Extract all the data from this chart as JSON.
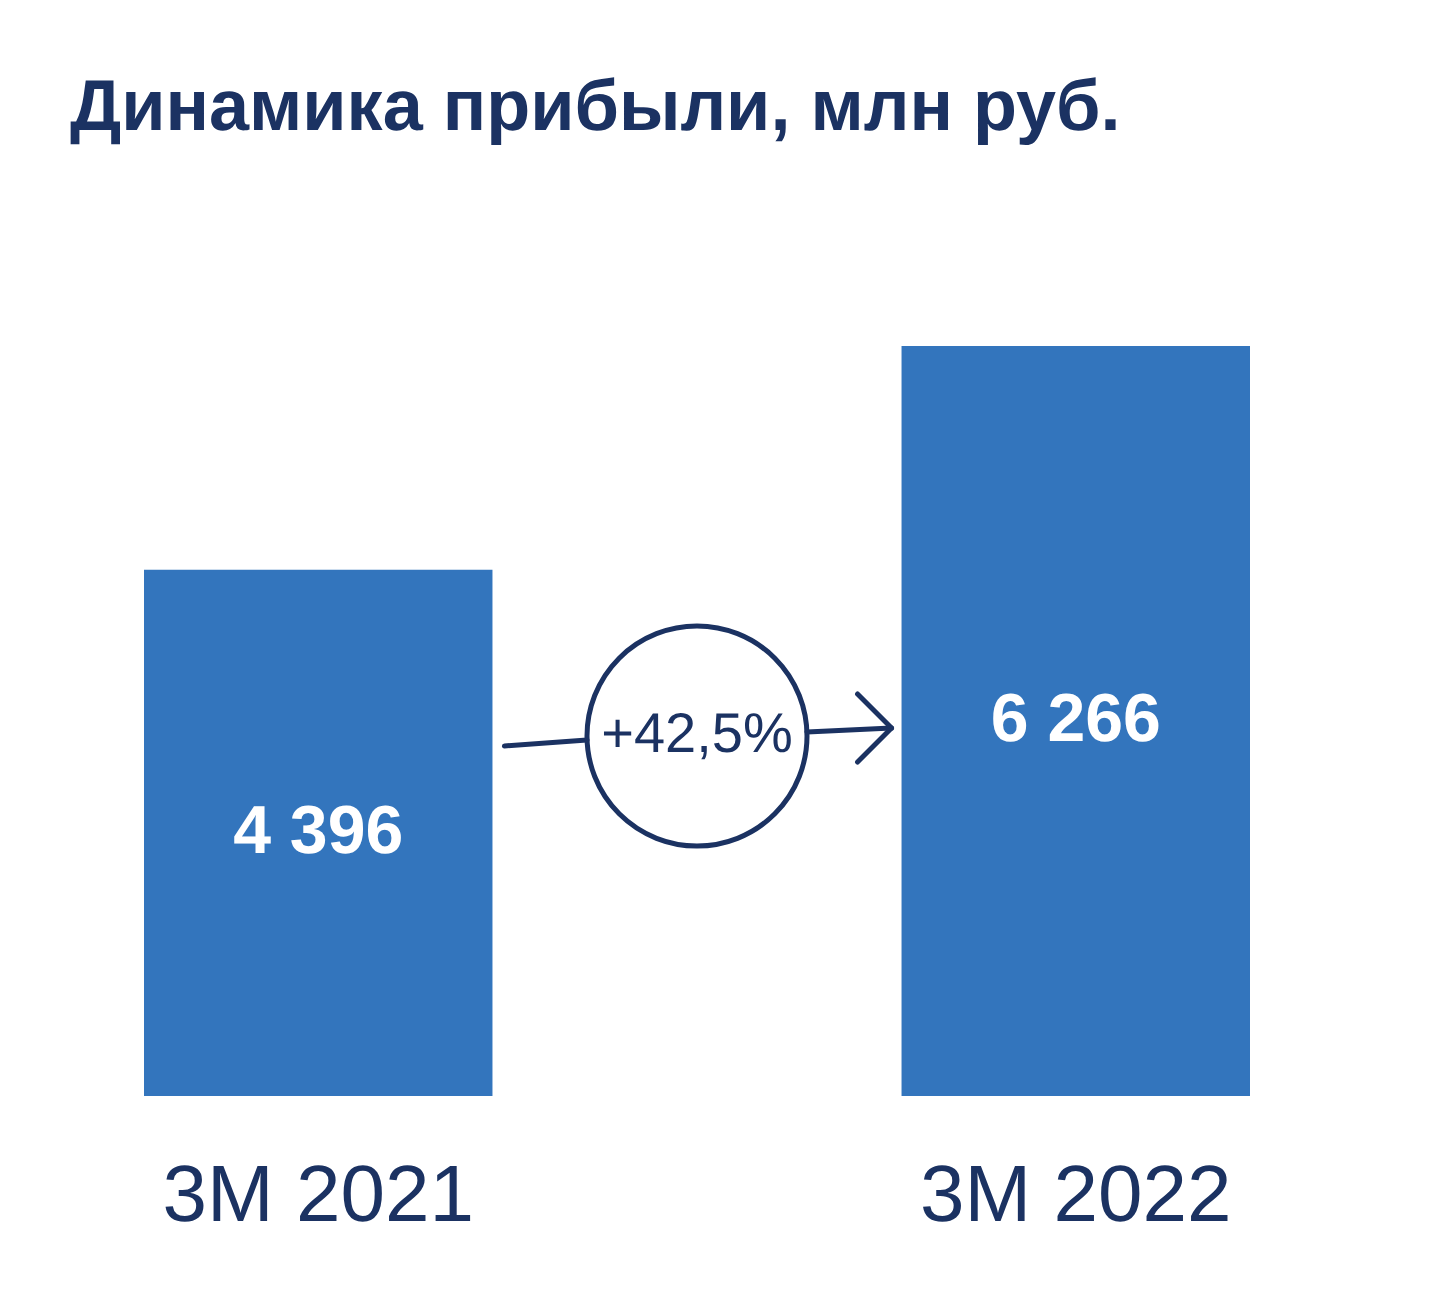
{
  "chart_data": {
    "type": "bar",
    "title": "Динамика прибыли, млн руб.",
    "categories": [
      "3M 2021",
      "3M 2022"
    ],
    "values": [
      4396,
      6266
    ],
    "color": "#3375bd",
    "value_labels": [
      "4 396",
      "6 266"
    ],
    "tick_labels": "x",
    "annotations": [
      "+42,5%"
    ]
  }
}
